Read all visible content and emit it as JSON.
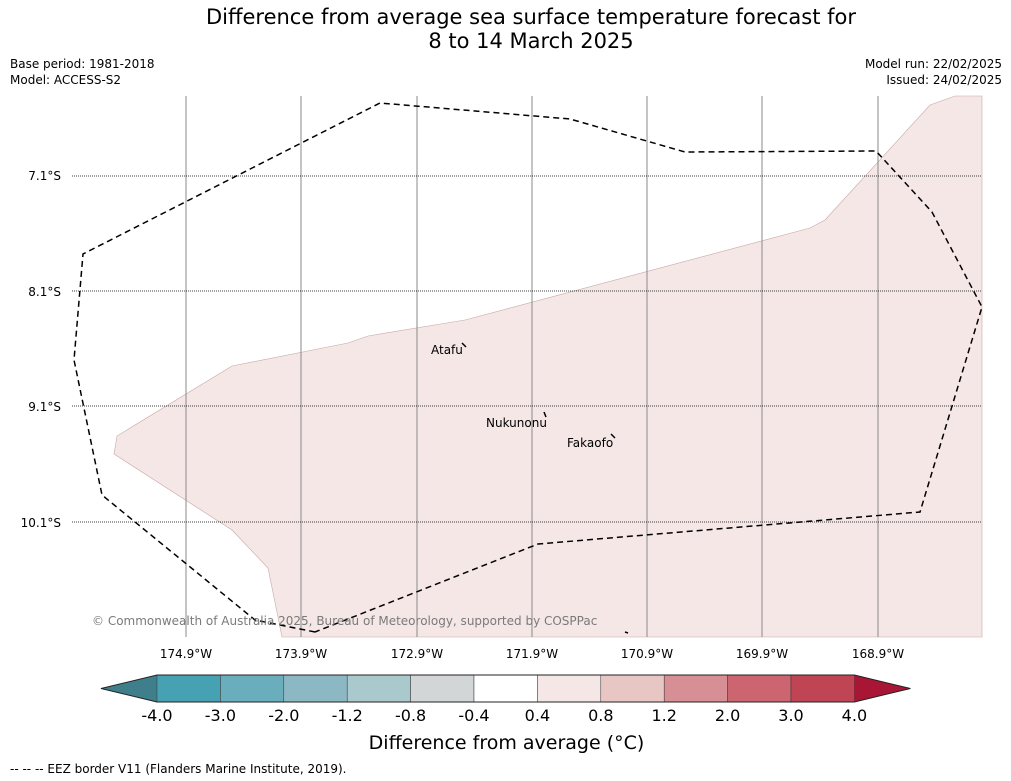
{
  "title": {
    "line1": "Difference from average sea surface temperature forecast for",
    "line2": "8 to 14 March 2025"
  },
  "meta": {
    "base_period": "Base period: 1981-2018",
    "model": "Model: ACCESS-S2",
    "model_run": "Model run: 22/02/2025",
    "issued": "Issued: 24/02/2025"
  },
  "map": {
    "lat_labels": [
      "7.1°S",
      "8.1°S",
      "9.1°S",
      "10.1°S"
    ],
    "lon_labels": [
      "174.9°W",
      "173.9°W",
      "172.9°W",
      "171.9°W",
      "170.9°W",
      "169.9°W",
      "168.9°W"
    ],
    "places": [
      "Atafu",
      "Nukunonu",
      "Fakaofo"
    ],
    "copyright": "© Commonwealth of Australia 2025, Bureau of Meteorology, supported by COSPPac",
    "anomaly_fill_color": "#f5e7e6",
    "eez_line": "dashed"
  },
  "colorbar": {
    "ticks": [
      "-4.0",
      "-3.0",
      "-2.0",
      "-1.2",
      "-0.8",
      "-0.4",
      "0.4",
      "0.8",
      "1.2",
      "2.0",
      "3.0",
      "4.0"
    ],
    "colors": [
      "#3f7f8c",
      "#46a2b3",
      "#6aaebe",
      "#8cb8c3",
      "#aac9cd",
      "#d2d6d6",
      "#ffffff",
      "#f5e7e6",
      "#e8c6c3",
      "#d68f95",
      "#cd6570",
      "#bf4454",
      "#a81535"
    ],
    "title": "Difference from average (°C)"
  },
  "footer": "--  --  -- EEZ border V11 (Flanders Marine Institute, 2019)."
}
